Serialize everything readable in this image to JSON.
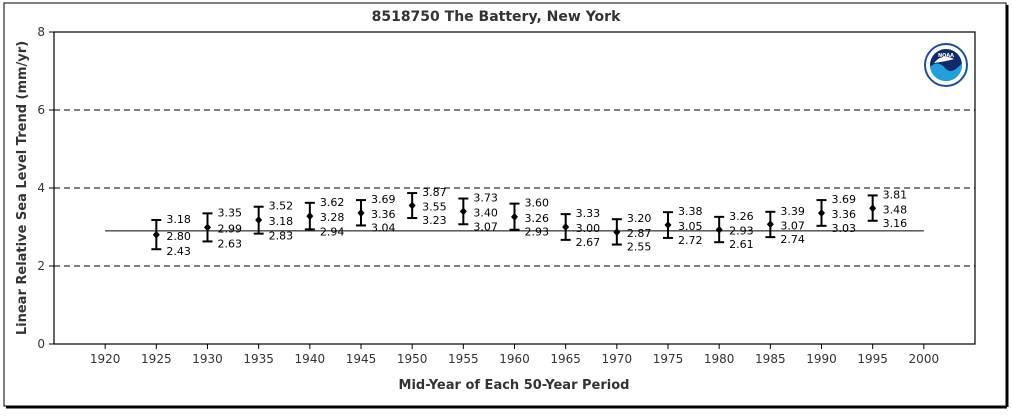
{
  "chart_data": {
    "type": "errorbar",
    "title": "8518750 The Battery, New York",
    "xlabel": "Mid-Year of Each 50-Year Period",
    "ylabel": "Linear Relative Sea Level Trend (mm/yr)",
    "xlim": [
      1915,
      2005
    ],
    "ylim": [
      0,
      8
    ],
    "xticks": [
      1920,
      1925,
      1930,
      1935,
      1940,
      1945,
      1950,
      1955,
      1960,
      1965,
      1970,
      1975,
      1980,
      1985,
      1990,
      1995,
      2000
    ],
    "yticks": [
      0,
      2,
      4,
      6,
      8
    ],
    "gridlines_y": [
      2,
      4,
      6
    ],
    "grid_style": "dashed",
    "reference_line": {
      "value": 2.9,
      "x_start": 1920,
      "x_end": 2000
    },
    "logo": "noaa-logo",
    "points": [
      {
        "x": 1925,
        "upper": "3.18",
        "mid": "2.80",
        "lower": "2.43"
      },
      {
        "x": 1930,
        "upper": "3.35",
        "mid": "2.99",
        "lower": "2.63"
      },
      {
        "x": 1935,
        "upper": "3.52",
        "mid": "3.18",
        "lower": "2.83"
      },
      {
        "x": 1940,
        "upper": "3.62",
        "mid": "3.28",
        "lower": "2.94"
      },
      {
        "x": 1945,
        "upper": "3.69",
        "mid": "3.36",
        "lower": "3.04"
      },
      {
        "x": 1950,
        "upper": "3.87",
        "mid": "3.55",
        "lower": "3.23"
      },
      {
        "x": 1955,
        "upper": "3.73",
        "mid": "3.40",
        "lower": "3.07"
      },
      {
        "x": 1960,
        "upper": "3.60",
        "mid": "3.26",
        "lower": "2.93"
      },
      {
        "x": 1965,
        "upper": "3.33",
        "mid": "3.00",
        "lower": "2.67"
      },
      {
        "x": 1970,
        "upper": "3.20",
        "mid": "2.87",
        "lower": "2.55"
      },
      {
        "x": 1975,
        "upper": "3.38",
        "mid": "3.05",
        "lower": "2.72"
      },
      {
        "x": 1980,
        "upper": "3.26",
        "mid": "2.93",
        "lower": "2.61"
      },
      {
        "x": 1985,
        "upper": "3.39",
        "mid": "3.07",
        "lower": "2.74"
      },
      {
        "x": 1990,
        "upper": "3.69",
        "mid": "3.36",
        "lower": "3.03"
      },
      {
        "x": 1995,
        "upper": "3.81",
        "mid": "3.48",
        "lower": "3.16"
      }
    ],
    "colors": {
      "marks": "#000000",
      "text": "#333333",
      "noaa_blue": "#1a4fa0",
      "noaa_navy": "#0d2b6b",
      "noaa_light": "#21a0e0"
    }
  }
}
